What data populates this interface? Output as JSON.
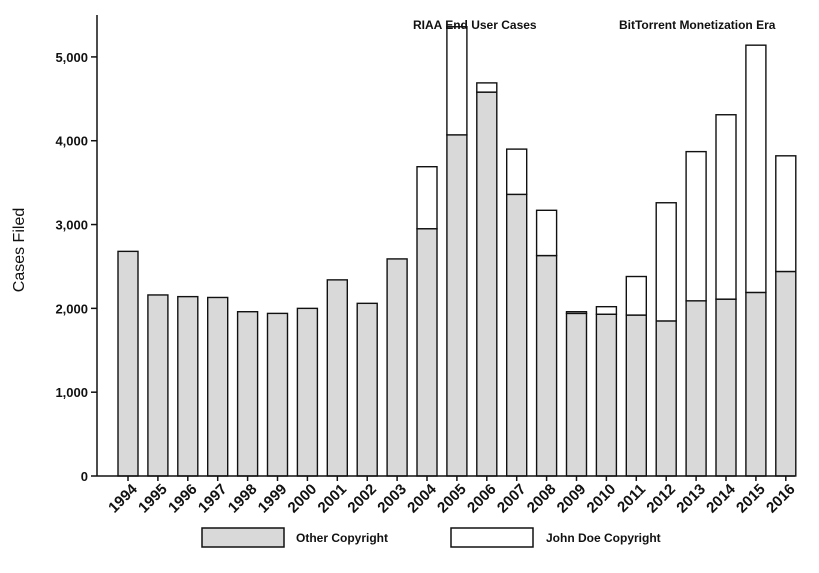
{
  "chart_data": {
    "type": "bar",
    "stacked": true,
    "categories": [
      "1994",
      "1995",
      "1996",
      "1997",
      "1998",
      "1999",
      "2000",
      "2001",
      "2002",
      "2003",
      "2004",
      "2005",
      "2006",
      "2007",
      "2008",
      "2009",
      "2010",
      "2011",
      "2012",
      "2013",
      "2014",
      "2015",
      "2016"
    ],
    "series": [
      {
        "name": "Other Copyright",
        "color": "#d9d9d9",
        "values": [
          2680,
          2160,
          2140,
          2130,
          1960,
          1940,
          2000,
          2340,
          2060,
          2590,
          2950,
          4070,
          4580,
          3360,
          2630,
          1940,
          1930,
          1920,
          1850,
          2090,
          2110,
          2190,
          2440
        ]
      },
      {
        "name": "John Doe Copyright",
        "color": "#ffffff",
        "values": [
          0,
          0,
          0,
          0,
          0,
          0,
          0,
          0,
          0,
          0,
          740,
          1290,
          110,
          540,
          540,
          20,
          90,
          460,
          1410,
          1780,
          2200,
          2950,
          1380
        ]
      }
    ],
    "ylabel": "Cases Filed",
    "ylim": [
      0,
      5500
    ],
    "yticks": [
      0,
      1000,
      2000,
      3000,
      4000,
      5000
    ],
    "ytick_labels": [
      "0",
      "1,000",
      "2,000",
      "3,000",
      "4,000",
      "5,000"
    ],
    "annotations": [
      {
        "text": "RIAA End User Cases"
      },
      {
        "text": "BitTorrent Monetization Era"
      }
    ],
    "legend": {
      "placement": "bottom"
    },
    "grid": false
  }
}
